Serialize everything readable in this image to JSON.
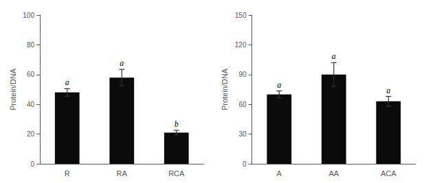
{
  "chart_data": [
    {
      "type": "bar",
      "categories": [
        "R",
        "RA",
        "RCA"
      ],
      "values": [
        48,
        58,
        21
      ],
      "errors": [
        2.5,
        5.5,
        1.5
      ],
      "annotations": [
        "a",
        "a",
        "b"
      ],
      "ylabel": "Protein/DNA",
      "ylim": [
        0,
        100
      ],
      "yticks": [
        0,
        20,
        40,
        60,
        80,
        100
      ],
      "color": "#0a0a0a",
      "grid": false
    },
    {
      "type": "bar",
      "categories": [
        "A",
        "AA",
        "ACA"
      ],
      "values": [
        70,
        90,
        63
      ],
      "errors": [
        3.5,
        12,
        5
      ],
      "annotations": [
        "a",
        "a",
        "a"
      ],
      "ylabel": "Protein/DNA",
      "ylim": [
        0,
        150
      ],
      "yticks": [
        0,
        30,
        60,
        90,
        120,
        150
      ],
      "color": "#0a0a0a",
      "grid": false
    }
  ]
}
